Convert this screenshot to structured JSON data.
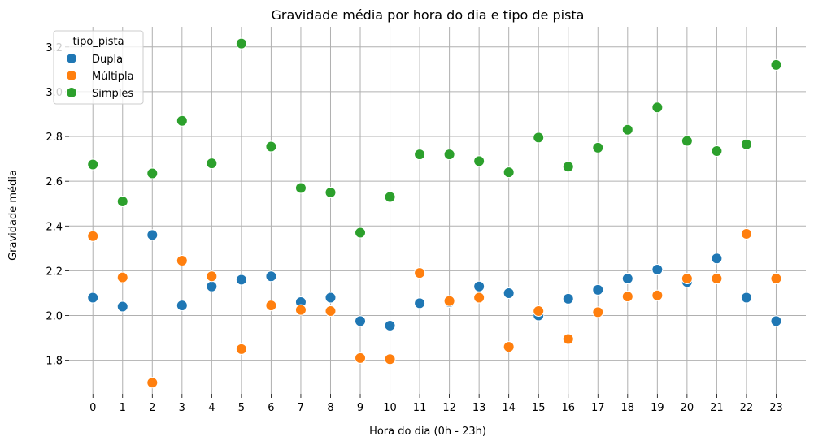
{
  "chart_data": {
    "type": "scatter",
    "title": "Gravidade média por hora do dia e tipo de pista",
    "xlabel": "Hora do dia (0h - 23h)",
    "ylabel": "Gravidade média",
    "x": [
      0,
      1,
      2,
      3,
      4,
      5,
      6,
      7,
      8,
      9,
      10,
      11,
      12,
      13,
      14,
      15,
      16,
      17,
      18,
      19,
      20,
      21,
      22,
      23
    ],
    "xlim": [
      -0.8,
      24
    ],
    "ylim": [
      1.65,
      3.29
    ],
    "yticks": [
      "1.8",
      "2.0",
      "2.2",
      "2.4",
      "2.6",
      "2.8",
      "3.0",
      "3.2"
    ],
    "grid": true,
    "legend": {
      "title": "tipo_pista",
      "position": "top-left"
    },
    "series": [
      {
        "name": "Dupla",
        "color": "#1f77b4",
        "values": [
          2.08,
          2.04,
          2.36,
          2.045,
          2.13,
          2.16,
          2.175,
          2.06,
          2.08,
          1.975,
          1.955,
          2.055,
          2.06,
          2.13,
          2.1,
          2.0,
          2.075,
          2.115,
          2.165,
          2.205,
          2.15,
          2.255,
          2.08,
          1.975
        ]
      },
      {
        "name": "Múltipla",
        "color": "#ff7f0e",
        "values": [
          2.355,
          2.17,
          1.7,
          2.245,
          2.175,
          1.85,
          2.045,
          2.025,
          2.02,
          1.81,
          1.805,
          2.19,
          2.065,
          2.08,
          1.86,
          2.02,
          1.895,
          2.015,
          2.085,
          2.09,
          2.165,
          2.165,
          2.365,
          2.165
        ]
      },
      {
        "name": "Simples",
        "color": "#2ca02c",
        "values": [
          2.675,
          2.51,
          2.635,
          2.87,
          2.68,
          3.215,
          2.755,
          2.57,
          2.55,
          2.37,
          2.53,
          2.72,
          2.72,
          2.69,
          2.64,
          2.795,
          2.665,
          2.75,
          2.83,
          2.93,
          2.78,
          2.735,
          2.765,
          3.12
        ]
      }
    ]
  }
}
